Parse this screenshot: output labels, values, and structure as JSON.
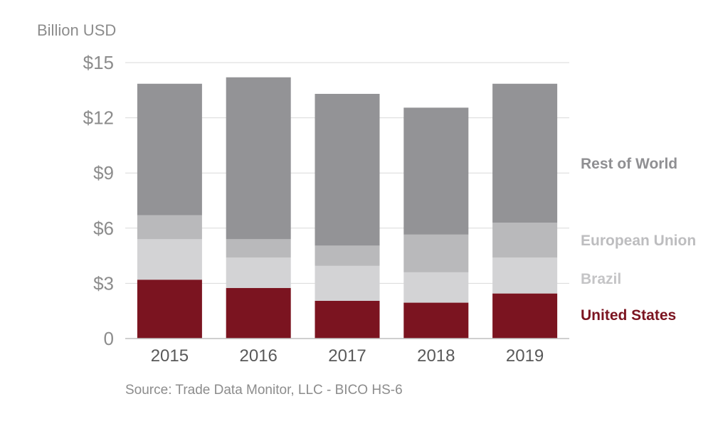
{
  "chart_data": {
    "type": "bar",
    "stacked": true,
    "ylabel": "Billion USD",
    "ylim": [
      0,
      15
    ],
    "yticks": [
      {
        "value": 0,
        "label": "0"
      },
      {
        "value": 3,
        "label": "$3"
      },
      {
        "value": 6,
        "label": "$6"
      },
      {
        "value": 9,
        "label": "$9"
      },
      {
        "value": 12,
        "label": "$12"
      },
      {
        "value": 15,
        "label": "$15"
      }
    ],
    "grid": true,
    "legend_position": "right",
    "categories": [
      "2015",
      "2016",
      "2017",
      "2018",
      "2019"
    ],
    "series": [
      {
        "name": "United States",
        "color": "#7b1420",
        "values": [
          3.2,
          2.75,
          2.05,
          1.95,
          2.45
        ]
      },
      {
        "name": "Brazil",
        "color": "#d3d3d5",
        "values": [
          2.2,
          1.65,
          1.9,
          1.65,
          1.95
        ]
      },
      {
        "name": "European Union",
        "color": "#b9b9bb",
        "values": [
          1.3,
          1.0,
          1.1,
          2.05,
          1.9
        ]
      },
      {
        "name": "Rest of World",
        "color": "#939396",
        "values": [
          7.15,
          8.8,
          8.25,
          6.9,
          7.55
        ]
      }
    ],
    "source": "Source: Trade Data Monitor, LLC - BICO HS-6"
  }
}
